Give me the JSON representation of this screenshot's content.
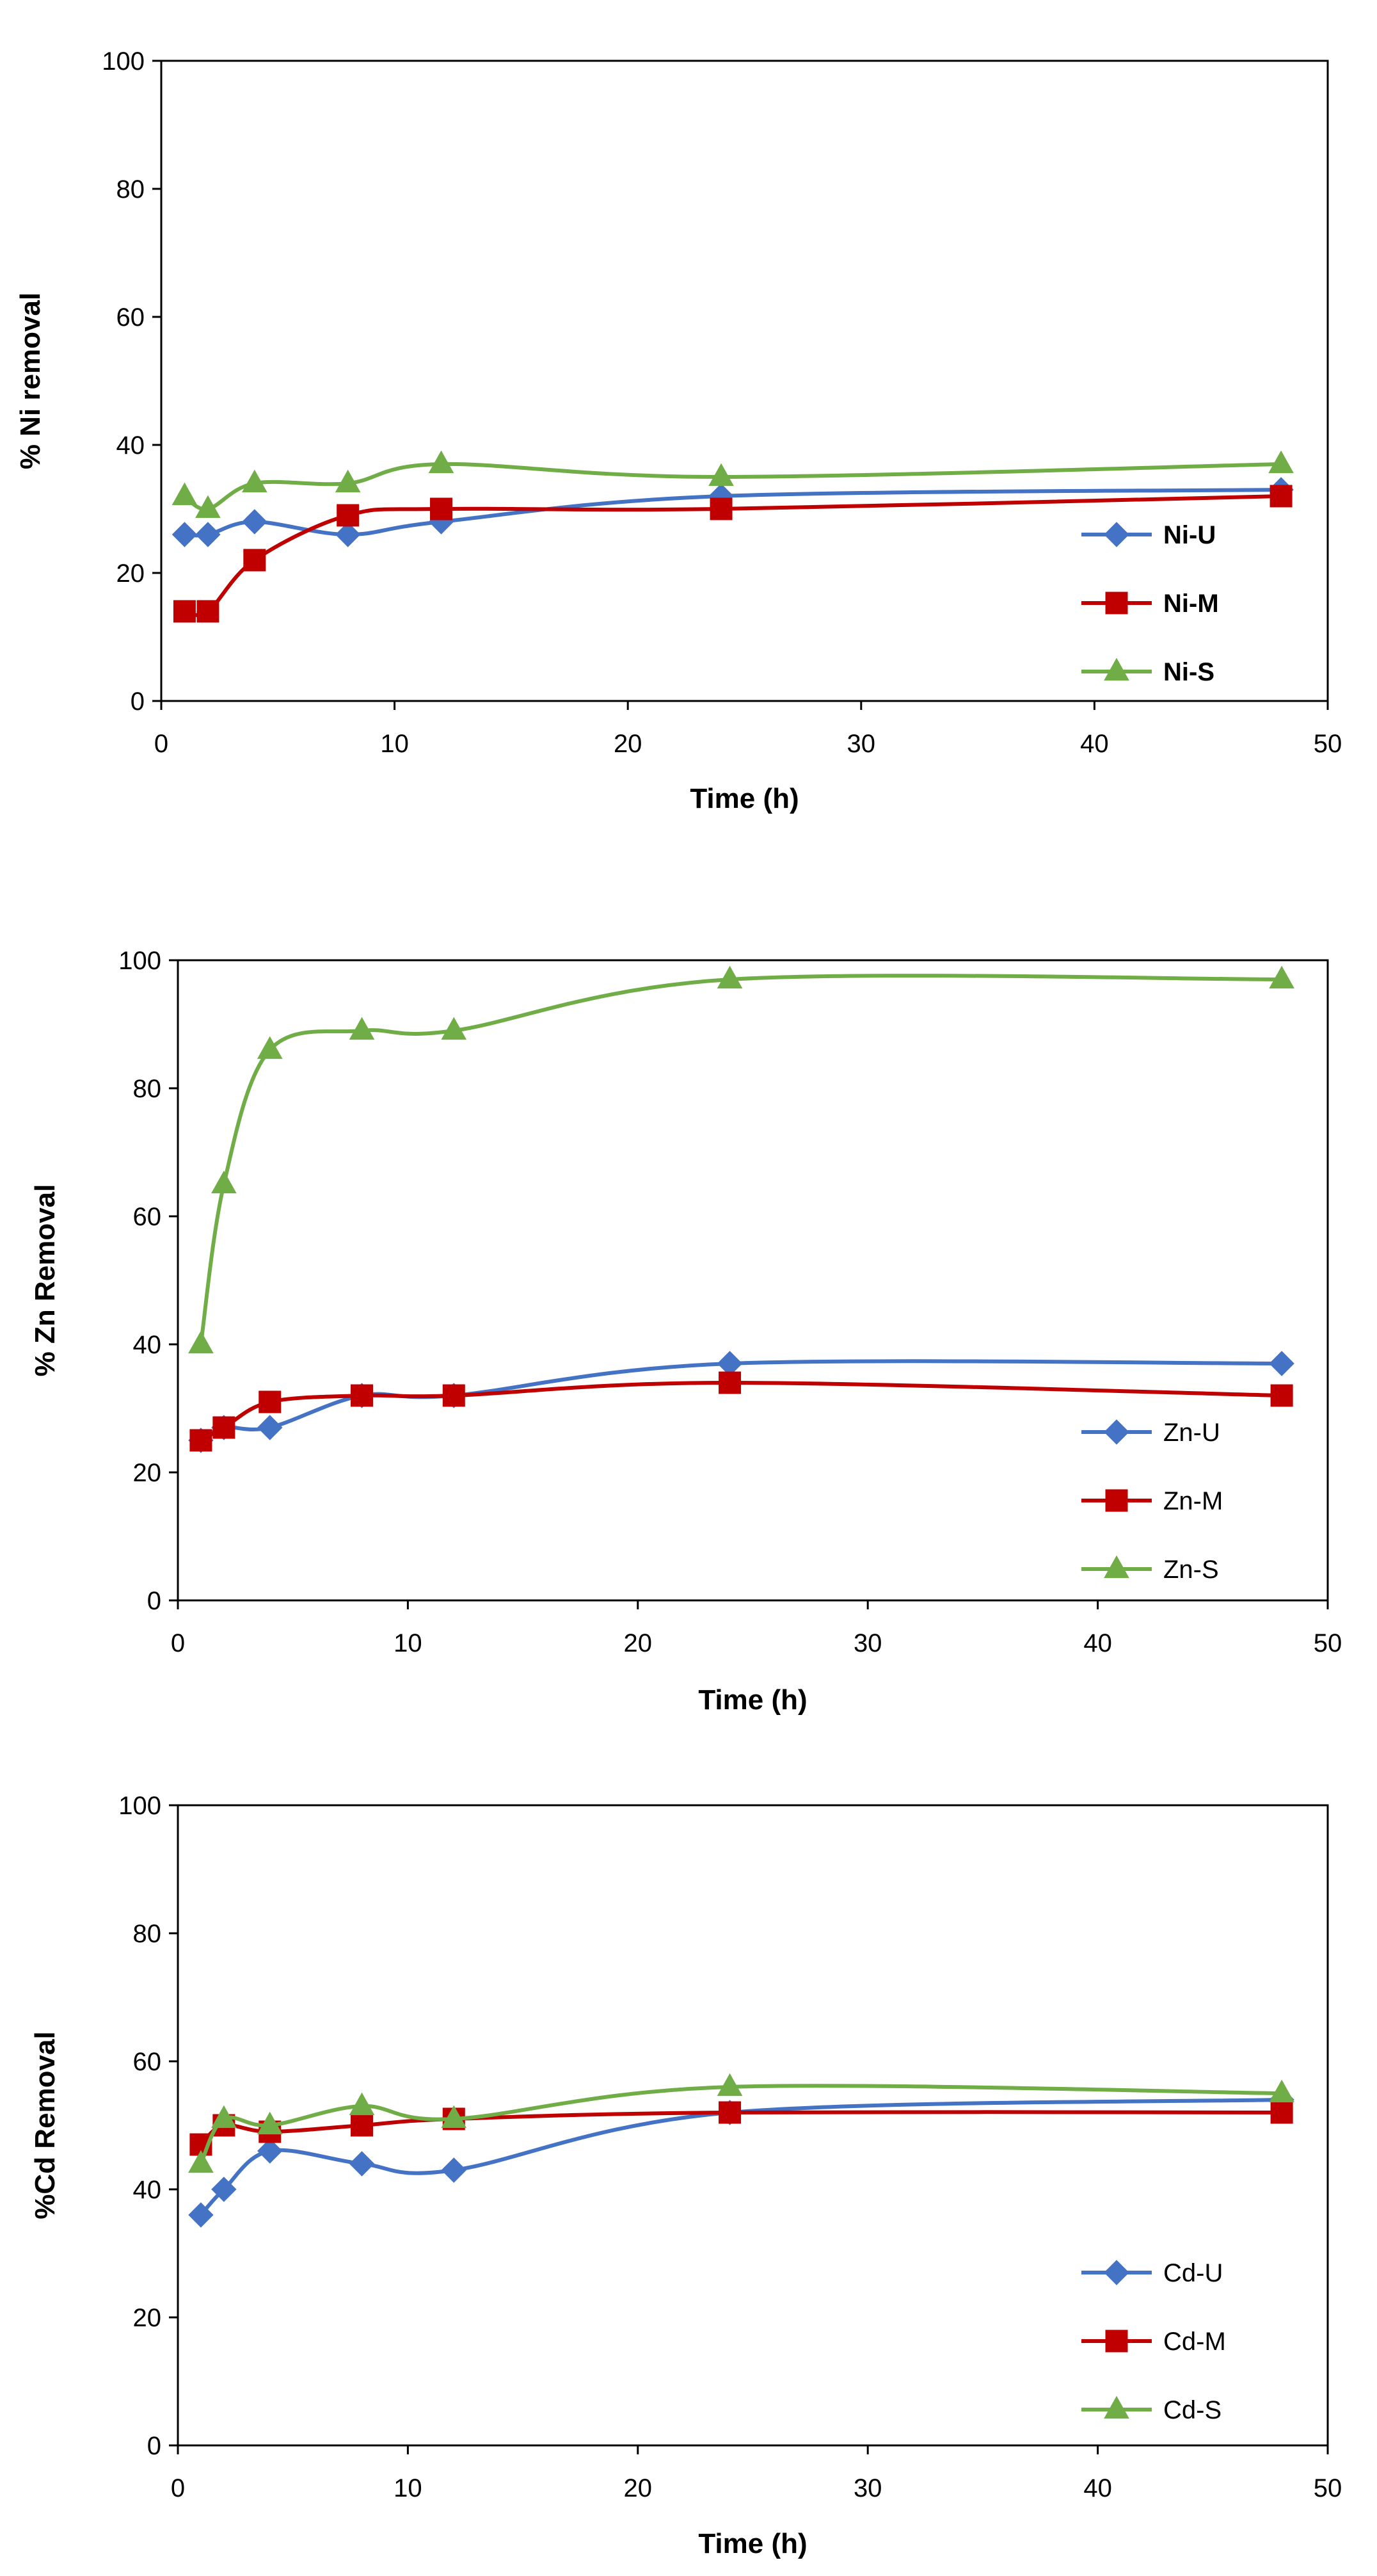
{
  "chart_data": [
    {
      "type": "line",
      "title": "",
      "xlabel": "Time (h)",
      "ylabel": "% Ni removal",
      "xlim": [
        0,
        50
      ],
      "ylim": [
        0,
        100
      ],
      "xticks": [
        0,
        10,
        20,
        30,
        40,
        50
      ],
      "yticks": [
        0,
        20,
        40,
        60,
        80,
        100
      ],
      "grid": false,
      "legend_position": "bottom-right",
      "legend_bold": true,
      "series": [
        {
          "name": "Ni-U",
          "marker": "diamond",
          "color": "#4472C4",
          "x": [
            1,
            2,
            4,
            8,
            12,
            24,
            48
          ],
          "y": [
            26,
            26,
            28,
            26,
            28,
            32,
            33
          ]
        },
        {
          "name": "Ni-M",
          "marker": "square",
          "color": "#C00000",
          "x": [
            1,
            2,
            4,
            8,
            12,
            24,
            48
          ],
          "y": [
            14,
            14,
            22,
            29,
            30,
            30,
            32
          ]
        },
        {
          "name": "Ni-S",
          "marker": "triangle",
          "color": "#70AD47",
          "x": [
            1,
            2,
            4,
            8,
            12,
            24,
            48
          ],
          "y": [
            32,
            30,
            34,
            34,
            37,
            35,
            37
          ]
        }
      ]
    },
    {
      "type": "line",
      "title": "",
      "xlabel": "Time (h)",
      "ylabel": "% Zn Removal",
      "xlim": [
        0,
        50
      ],
      "ylim": [
        0,
        100
      ],
      "xticks": [
        0,
        10,
        20,
        30,
        40,
        50
      ],
      "yticks": [
        0,
        20,
        40,
        60,
        80,
        100
      ],
      "grid": false,
      "legend_position": "bottom-right",
      "legend_bold": false,
      "series": [
        {
          "name": "Zn-U",
          "marker": "diamond",
          "color": "#4472C4",
          "x": [
            1,
            2,
            4,
            8,
            12,
            24,
            48
          ],
          "y": [
            25,
            27,
            27,
            32,
            32,
            37,
            37
          ]
        },
        {
          "name": "Zn-M",
          "marker": "square",
          "color": "#C00000",
          "x": [
            1,
            2,
            4,
            8,
            12,
            24,
            48
          ],
          "y": [
            25,
            27,
            31,
            32,
            32,
            34,
            32
          ]
        },
        {
          "name": "Zn-S",
          "marker": "triangle",
          "color": "#70AD47",
          "x": [
            1,
            2,
            4,
            8,
            12,
            24,
            48
          ],
          "y": [
            40,
            65,
            86,
            89,
            89,
            97,
            97
          ]
        }
      ]
    },
    {
      "type": "line",
      "title": "",
      "xlabel": "Time (h)",
      "ylabel": "%Cd Removal",
      "xlim": [
        0,
        50
      ],
      "ylim": [
        0,
        100
      ],
      "xticks": [
        0,
        10,
        20,
        30,
        40,
        50
      ],
      "yticks": [
        0,
        20,
        40,
        60,
        80,
        100
      ],
      "grid": false,
      "legend_position": "bottom-right",
      "legend_bold": false,
      "series": [
        {
          "name": "Cd-U",
          "marker": "diamond",
          "color": "#4472C4",
          "x": [
            1,
            2,
            4,
            8,
            12,
            24,
            48
          ],
          "y": [
            36,
            40,
            46,
            44,
            43,
            52,
            54
          ]
        },
        {
          "name": "Cd-M",
          "marker": "square",
          "color": "#C00000",
          "x": [
            1,
            2,
            4,
            8,
            12,
            24,
            48
          ],
          "y": [
            47,
            50,
            49,
            50,
            51,
            52,
            52
          ]
        },
        {
          "name": "Cd-S",
          "marker": "triangle",
          "color": "#70AD47",
          "x": [
            1,
            2,
            4,
            8,
            12,
            24,
            48
          ],
          "y": [
            44,
            51,
            50,
            53,
            51,
            56,
            55
          ]
        }
      ]
    }
  ]
}
